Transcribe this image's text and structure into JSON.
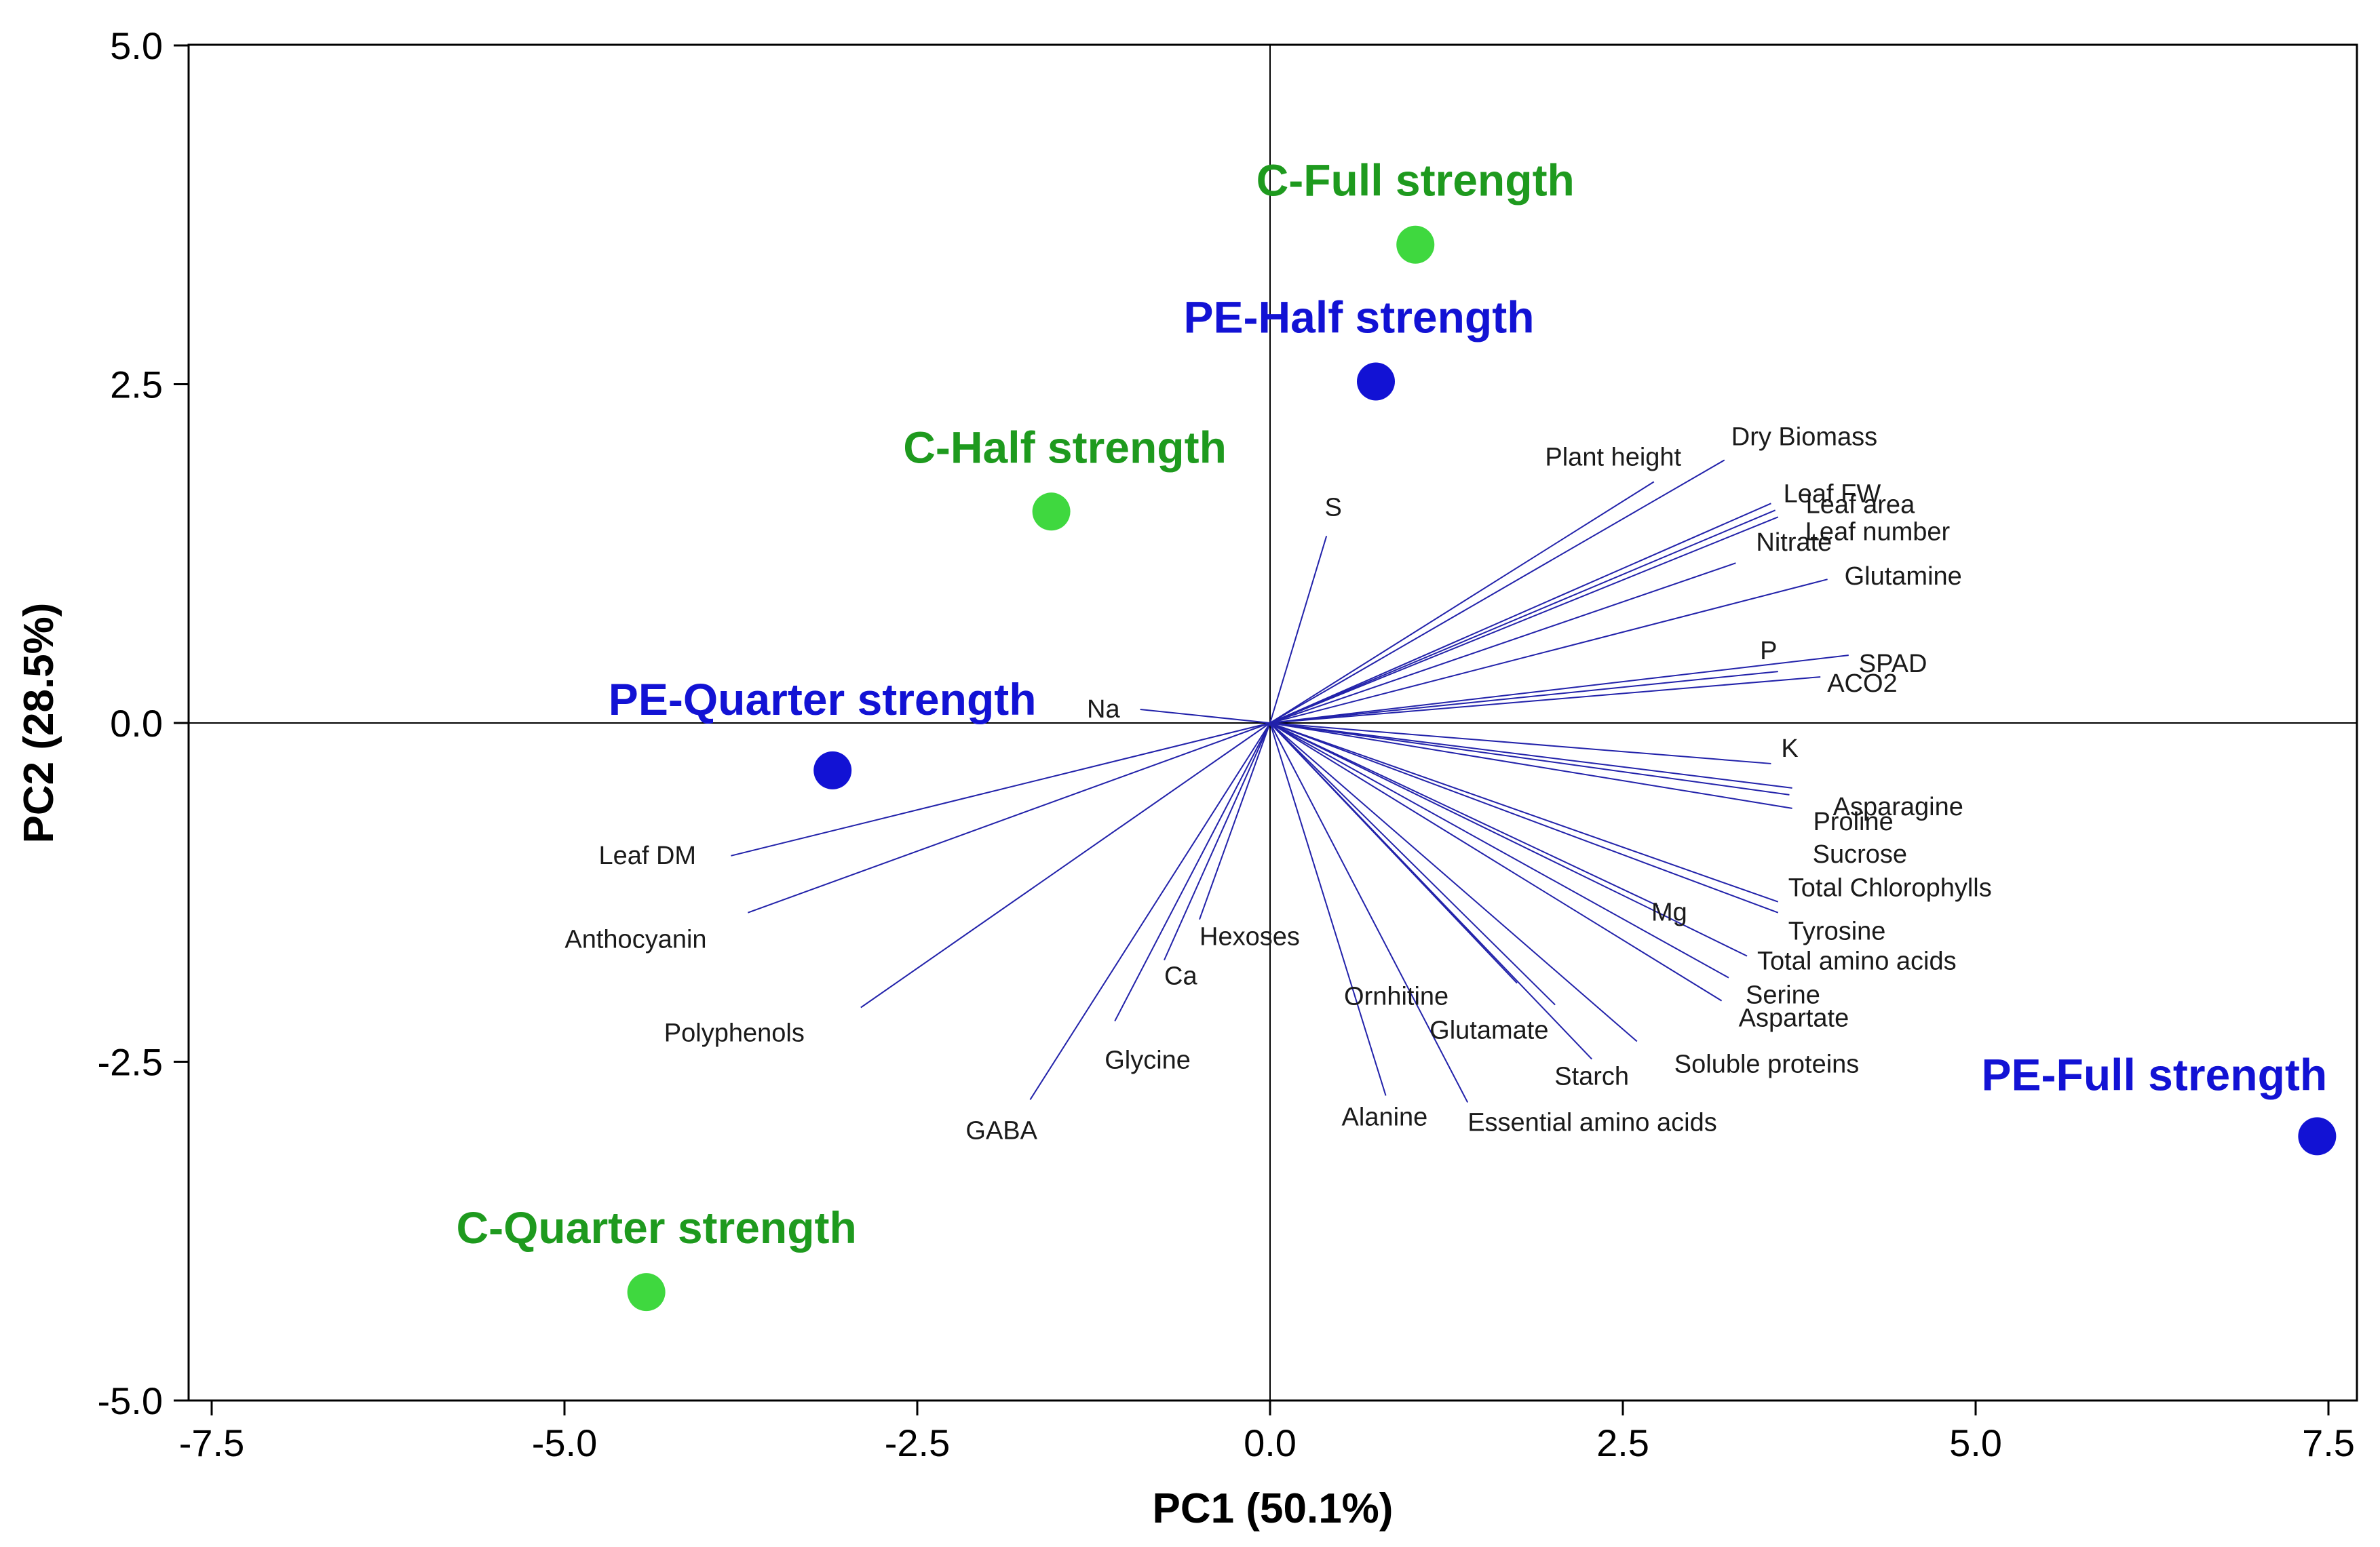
{
  "chart_data": {
    "type": "scatter",
    "subtype": "pca-biplot",
    "xlabel": "PC1 (50.1%)",
    "ylabel": "PC2 (28.5%)",
    "xlim": [
      -7.5,
      7.5
    ],
    "ylim": [
      -5.0,
      5.0
    ],
    "xticks": [
      -7.5,
      -5.0,
      -2.5,
      0.0,
      2.5,
      5.0,
      7.5
    ],
    "yticks": [
      -5.0,
      -2.5,
      0.0,
      2.5,
      5.0
    ],
    "xtick_labels": [
      "-7.5",
      "-5.0",
      "-2.5",
      "0.0",
      "2.5",
      "5.0",
      "7.5"
    ],
    "ytick_labels": [
      "-5.0",
      "-2.5",
      "0.0",
      "2.5",
      "5.0"
    ],
    "colors": {
      "C": "#3fd83f",
      "PE": "#1212d4",
      "C_label": "#1e9a1e",
      "PE_label": "#1212d4",
      "vector": "#2222aa"
    },
    "groups": [
      {
        "name": "C-Full strength",
        "series": "C",
        "x": 1.03,
        "y": 3.53
      },
      {
        "name": "PE-Half strength",
        "series": "PE",
        "x": 0.75,
        "y": 2.52
      },
      {
        "name": "C-Half strength",
        "series": "C",
        "x": -1.55,
        "y": 1.56
      },
      {
        "name": "PE-Quarter strength",
        "series": "PE",
        "x": -3.1,
        "y": -0.35
      },
      {
        "name": "PE-Full strength",
        "series": "PE",
        "x": 7.42,
        "y": -3.05
      },
      {
        "name": "C-Quarter strength",
        "series": "C",
        "x": -4.42,
        "y": -4.2
      }
    ],
    "loadings": [
      {
        "name": "Dry Biomass",
        "x": 3.22,
        "y": 1.94
      },
      {
        "name": "Plant height",
        "x": 2.72,
        "y": 1.78
      },
      {
        "name": "Leaf FW",
        "x": 3.55,
        "y": 1.62
      },
      {
        "name": "Leaf area",
        "x": 3.58,
        "y": 1.57
      },
      {
        "name": "Leaf number",
        "x": 3.6,
        "y": 1.52
      },
      {
        "name": "Nitrate",
        "x": 3.3,
        "y": 1.18
      },
      {
        "name": "Glutamine",
        "x": 3.95,
        "y": 1.06
      },
      {
        "name": "S",
        "x": 0.4,
        "y": 1.38
      },
      {
        "name": "P",
        "x": 3.6,
        "y": 0.38
      },
      {
        "name": "SPAD",
        "x": 4.1,
        "y": 0.5
      },
      {
        "name": "ACO2",
        "x": 3.9,
        "y": 0.34
      },
      {
        "name": "Na",
        "x": -0.92,
        "y": 0.1
      },
      {
        "name": "K",
        "x": 3.55,
        "y": -0.3
      },
      {
        "name": "Asparagine",
        "x": 3.7,
        "y": -0.48
      },
      {
        "name": "Proline",
        "x": 3.68,
        "y": -0.53
      },
      {
        "name": "Sucrose",
        "x": 3.7,
        "y": -0.63
      },
      {
        "name": "Total Chlorophylls",
        "x": 3.6,
        "y": -1.32
      },
      {
        "name": "Tyrosine",
        "x": 3.6,
        "y": -1.4
      },
      {
        "name": "Mg",
        "x": 2.75,
        "y": -1.35
      },
      {
        "name": "Total amino acids",
        "x": 3.38,
        "y": -1.72
      },
      {
        "name": "Serine",
        "x": 3.25,
        "y": -1.88
      },
      {
        "name": "Aspartate",
        "x": 3.2,
        "y": -2.05
      },
      {
        "name": "Soluble proteins",
        "x": 2.6,
        "y": -2.35
      },
      {
        "name": "Starch",
        "x": 2.28,
        "y": -2.48
      },
      {
        "name": "Glutamate",
        "x": 2.02,
        "y": -2.08
      },
      {
        "name": "Ornhitine",
        "x": 1.75,
        "y": -1.92
      },
      {
        "name": "Essential amino acids",
        "x": 1.4,
        "y": -2.8
      },
      {
        "name": "Alanine",
        "x": 0.82,
        "y": -2.75
      },
      {
        "name": "Hexoses",
        "x": -0.5,
        "y": -1.45
      },
      {
        "name": "Ca",
        "x": -0.75,
        "y": -1.75
      },
      {
        "name": "Glycine",
        "x": -1.1,
        "y": -2.2
      },
      {
        "name": "GABA",
        "x": -1.7,
        "y": -2.78
      },
      {
        "name": "Polyphenols",
        "x": -2.9,
        "y": -2.1
      },
      {
        "name": "Anthocyanin",
        "x": -3.7,
        "y": -1.4
      },
      {
        "name": "Leaf DM",
        "x": -3.82,
        "y": -0.98
      }
    ]
  }
}
